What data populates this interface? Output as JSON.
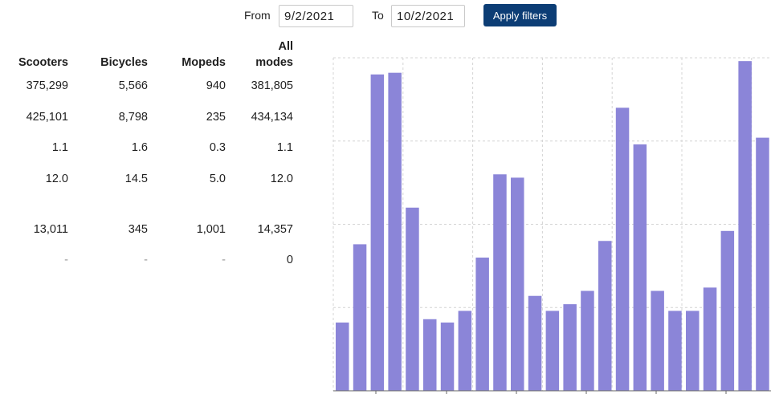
{
  "filters": {
    "from_label": "From",
    "from_value": "9/2/2021",
    "to_label": "To",
    "to_value": "10/2/2021",
    "apply_label": "Apply filters"
  },
  "table": {
    "headers": [
      "Scooters",
      "Bicycles",
      "Mopeds",
      "All",
      "modes"
    ],
    "rows": [
      [
        "375,299",
        "5,566",
        "940",
        "381,805"
      ],
      [
        "425,101",
        "8,798",
        "235",
        "434,134"
      ],
      [
        "1.1",
        "1.6",
        "0.3",
        "1.1"
      ],
      [
        "12.0",
        "14.5",
        "5.0",
        "12.0"
      ],
      [
        "13,011",
        "345",
        "1,001",
        "14,357"
      ],
      [
        "-",
        "-",
        "-",
        "0"
      ]
    ]
  },
  "colors": {
    "bar": "#8b85d8",
    "grid": "#d4d4d4",
    "button": "#0c3d75"
  },
  "chart_data": {
    "type": "bar",
    "title": "",
    "xlabel": "",
    "ylabel": "",
    "ylim": [
      0,
      100
    ],
    "values": [
      20.5,
      44.0,
      95.0,
      95.5,
      55.0,
      21.5,
      20.5,
      24.0,
      40.0,
      65.0,
      64.0,
      28.5,
      24.0,
      26.0,
      30.0,
      45.0,
      85.0,
      74.0,
      30.0,
      24.0,
      24.0,
      31.0,
      48.0,
      99.0,
      76.0
    ],
    "grid": true
  }
}
